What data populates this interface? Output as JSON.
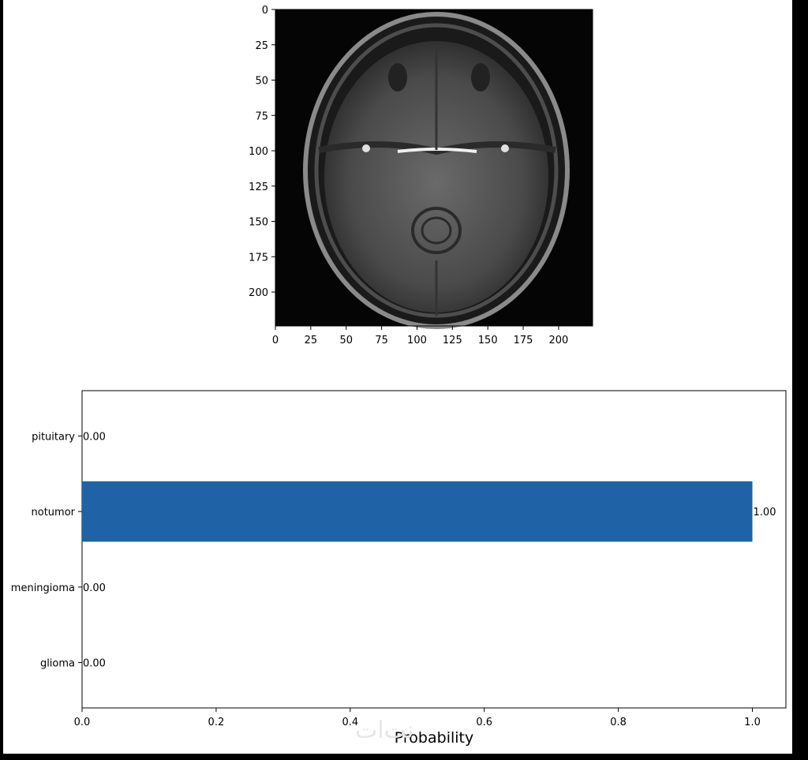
{
  "chart_data": [
    {
      "type": "image",
      "content": "axial brain MRI scan",
      "xlim": [
        0,
        224
      ],
      "ylim": [
        224,
        0
      ],
      "xticks": [
        0,
        25,
        50,
        75,
        100,
        125,
        150,
        175,
        200
      ],
      "yticks": [
        0,
        25,
        50,
        75,
        100,
        125,
        150,
        175,
        200
      ],
      "grid": false
    },
    {
      "type": "bar",
      "orientation": "horizontal",
      "categories": [
        "glioma",
        "meningioma",
        "notumor",
        "pituitary"
      ],
      "values": [
        0.0,
        0.0,
        1.0,
        0.0
      ],
      "data_labels": [
        "0.00",
        "0.00",
        "1.00",
        "0.00"
      ],
      "xlabel": "Probability",
      "ylabel": "",
      "xlim": [
        0,
        1.05
      ],
      "xticks": [
        0.0,
        0.2,
        0.4,
        0.6,
        0.8,
        1.0
      ],
      "xtick_labels": [
        "0.0",
        "0.2",
        "0.4",
        "0.6",
        "0.8",
        "1.0"
      ],
      "bar_color": "#1f63a6",
      "grid": false
    }
  ],
  "watermark_text": "نت‌ات"
}
